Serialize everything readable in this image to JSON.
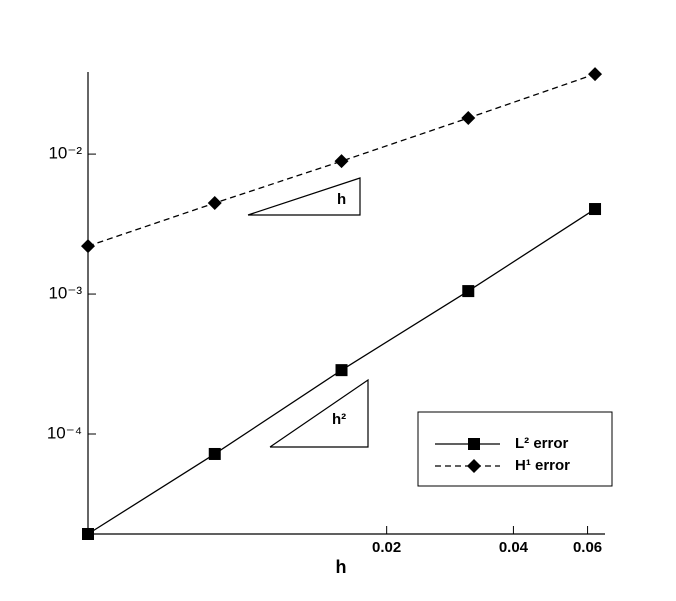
{
  "chart_data": {
    "type": "line",
    "xscale": "log",
    "yscale": "log",
    "x_label": "h",
    "x": [
      0.00390625,
      0.0078125,
      0.015625,
      0.03125,
      0.0625
    ],
    "xlim": [
      0.00390625,
      0.066
    ],
    "xticks": [
      0.02,
      0.04,
      0.06
    ],
    "ylim": [
      1.93e-05,
      0.0386
    ],
    "yticks": [
      {
        "value": 0.0001,
        "label": "10⁻⁴"
      },
      {
        "value": 0.001,
        "label": "10⁻³"
      },
      {
        "value": 0.01,
        "label": "10⁻²"
      }
    ],
    "series": [
      {
        "name": "L² error",
        "color": "#000000",
        "line_style": "solid",
        "marker": "square",
        "values": [
          1.93e-05,
          7.2e-05,
          0.000286,
          0.00105,
          0.00405
        ]
      },
      {
        "name": "H¹ error",
        "color": "#000000",
        "line_style": "dashed",
        "marker": "diamond",
        "values": [
          0.0022,
          0.00447,
          0.0089,
          0.0181,
          0.0373
        ]
      }
    ],
    "annotations": [
      "h",
      "h²"
    ]
  }
}
